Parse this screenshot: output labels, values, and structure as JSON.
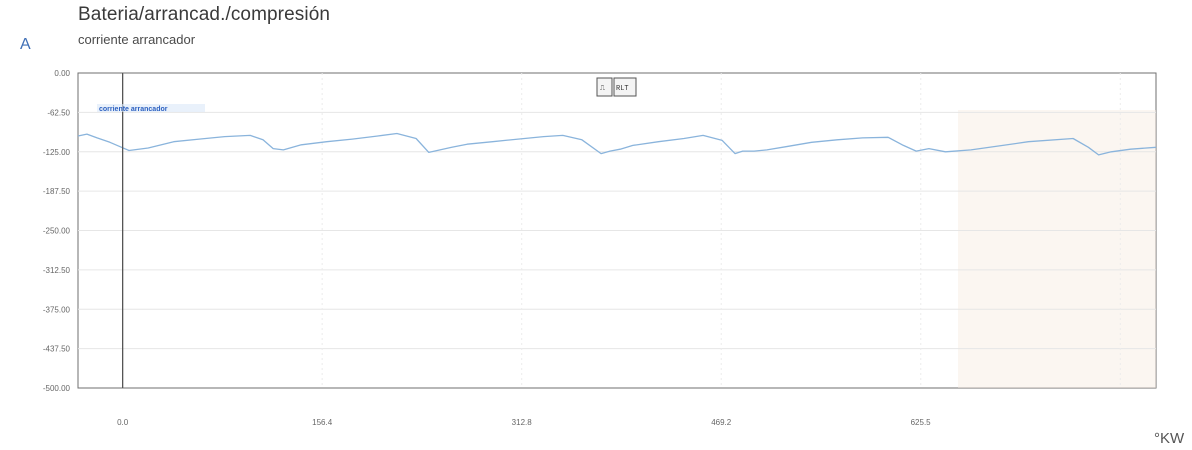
{
  "chart_data": {
    "type": "line",
    "title": "Bateria/arrancad./compresión",
    "subtitle": "corriente arrancador",
    "ylabel": "A",
    "xlabel": "°KW",
    "ylim": [
      -500,
      0
    ],
    "xlim": [
      -35,
      810
    ],
    "y_ticks": [
      "0.00",
      "-62.50",
      "-125.00",
      "-187.50",
      "-250.00",
      "-312.50",
      "-375.00",
      "-437.50",
      "-500.00"
    ],
    "x_ticks": [
      {
        "value": 0,
        "label": "0.0"
      },
      {
        "value": 156.4,
        "label": "156.4"
      },
      {
        "value": 312.8,
        "label": "312.8"
      },
      {
        "value": 469.2,
        "label": "469.2"
      },
      {
        "value": 625.5,
        "label": "625.5"
      }
    ],
    "cursor_x": 0,
    "grid": true,
    "legend": {
      "position": "top-left",
      "label": "corriente arrancador"
    },
    "series": [
      {
        "name": "corriente arrancador",
        "color": "#8ab4dc",
        "x": [
          -35,
          -28,
          -20,
          -10,
          -2,
          5,
          20,
          40,
          60,
          80,
          100,
          110,
          118,
          126,
          140,
          160,
          180,
          200,
          215,
          230,
          240,
          258,
          270,
          290,
          310,
          330,
          345,
          360,
          375,
          382,
          390,
          400,
          420,
          440,
          455,
          470,
          480,
          486,
          495,
          505,
          520,
          540,
          560,
          580,
          600,
          612,
          622,
          632,
          645,
          665,
          690,
          710,
          745,
          757,
          765,
          775,
          790,
          810
        ],
        "y": [
          -100,
          -97,
          -103,
          -110,
          -117,
          -123,
          -119,
          -109,
          -105,
          -101,
          -99,
          -106,
          -120,
          -122,
          -114,
          -109,
          -105,
          -100,
          -96,
          -104,
          -126,
          -118,
          -113,
          -109,
          -105,
          -101,
          -99,
          -106,
          -128,
          -124,
          -121,
          -115,
          -109,
          -104,
          -99,
          -107,
          -128,
          -124,
          -124,
          -122,
          -117,
          -110,
          -106,
          -103,
          -102,
          -115,
          -124,
          -120,
          -125,
          -122,
          -115,
          -109,
          -104,
          -118,
          -130,
          -125,
          -121,
          -118
        ]
      }
    ]
  },
  "toolbar": {
    "button_a": "⎍",
    "button_b": "RLT"
  }
}
